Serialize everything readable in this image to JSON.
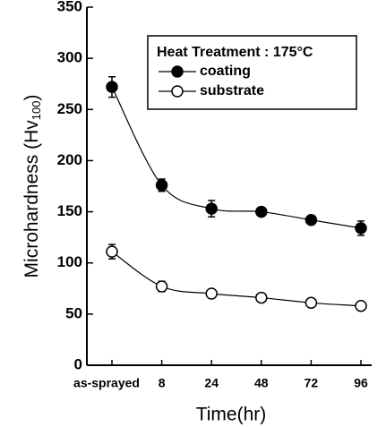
{
  "chart_data": {
    "type": "line",
    "y_label": [
      "Microhardness (Hv",
      "100",
      ")"
    ],
    "x_label": "Time(hr)",
    "legend_title": "Heat Treatment : 175°C",
    "legend": "upper right",
    "categories": [
      "as-sprayed",
      "8",
      "24",
      "48",
      "72",
      "96"
    ],
    "series": [
      {
        "name": "coating",
        "marker": "filled",
        "color": "#000",
        "values": [
          272,
          176,
          153,
          150,
          142,
          134
        ],
        "errors": [
          10,
          6,
          8,
          4,
          3,
          7
        ]
      },
      {
        "name": "substrate",
        "marker": "open",
        "color": "#000",
        "values": [
          111,
          77,
          70,
          66,
          61,
          58
        ],
        "errors": [
          7,
          5,
          3,
          3,
          3,
          3
        ]
      }
    ],
    "ylim": [
      0,
      350
    ],
    "yticks": [
      0,
      50,
      100,
      150,
      200,
      250,
      300,
      350
    ]
  }
}
